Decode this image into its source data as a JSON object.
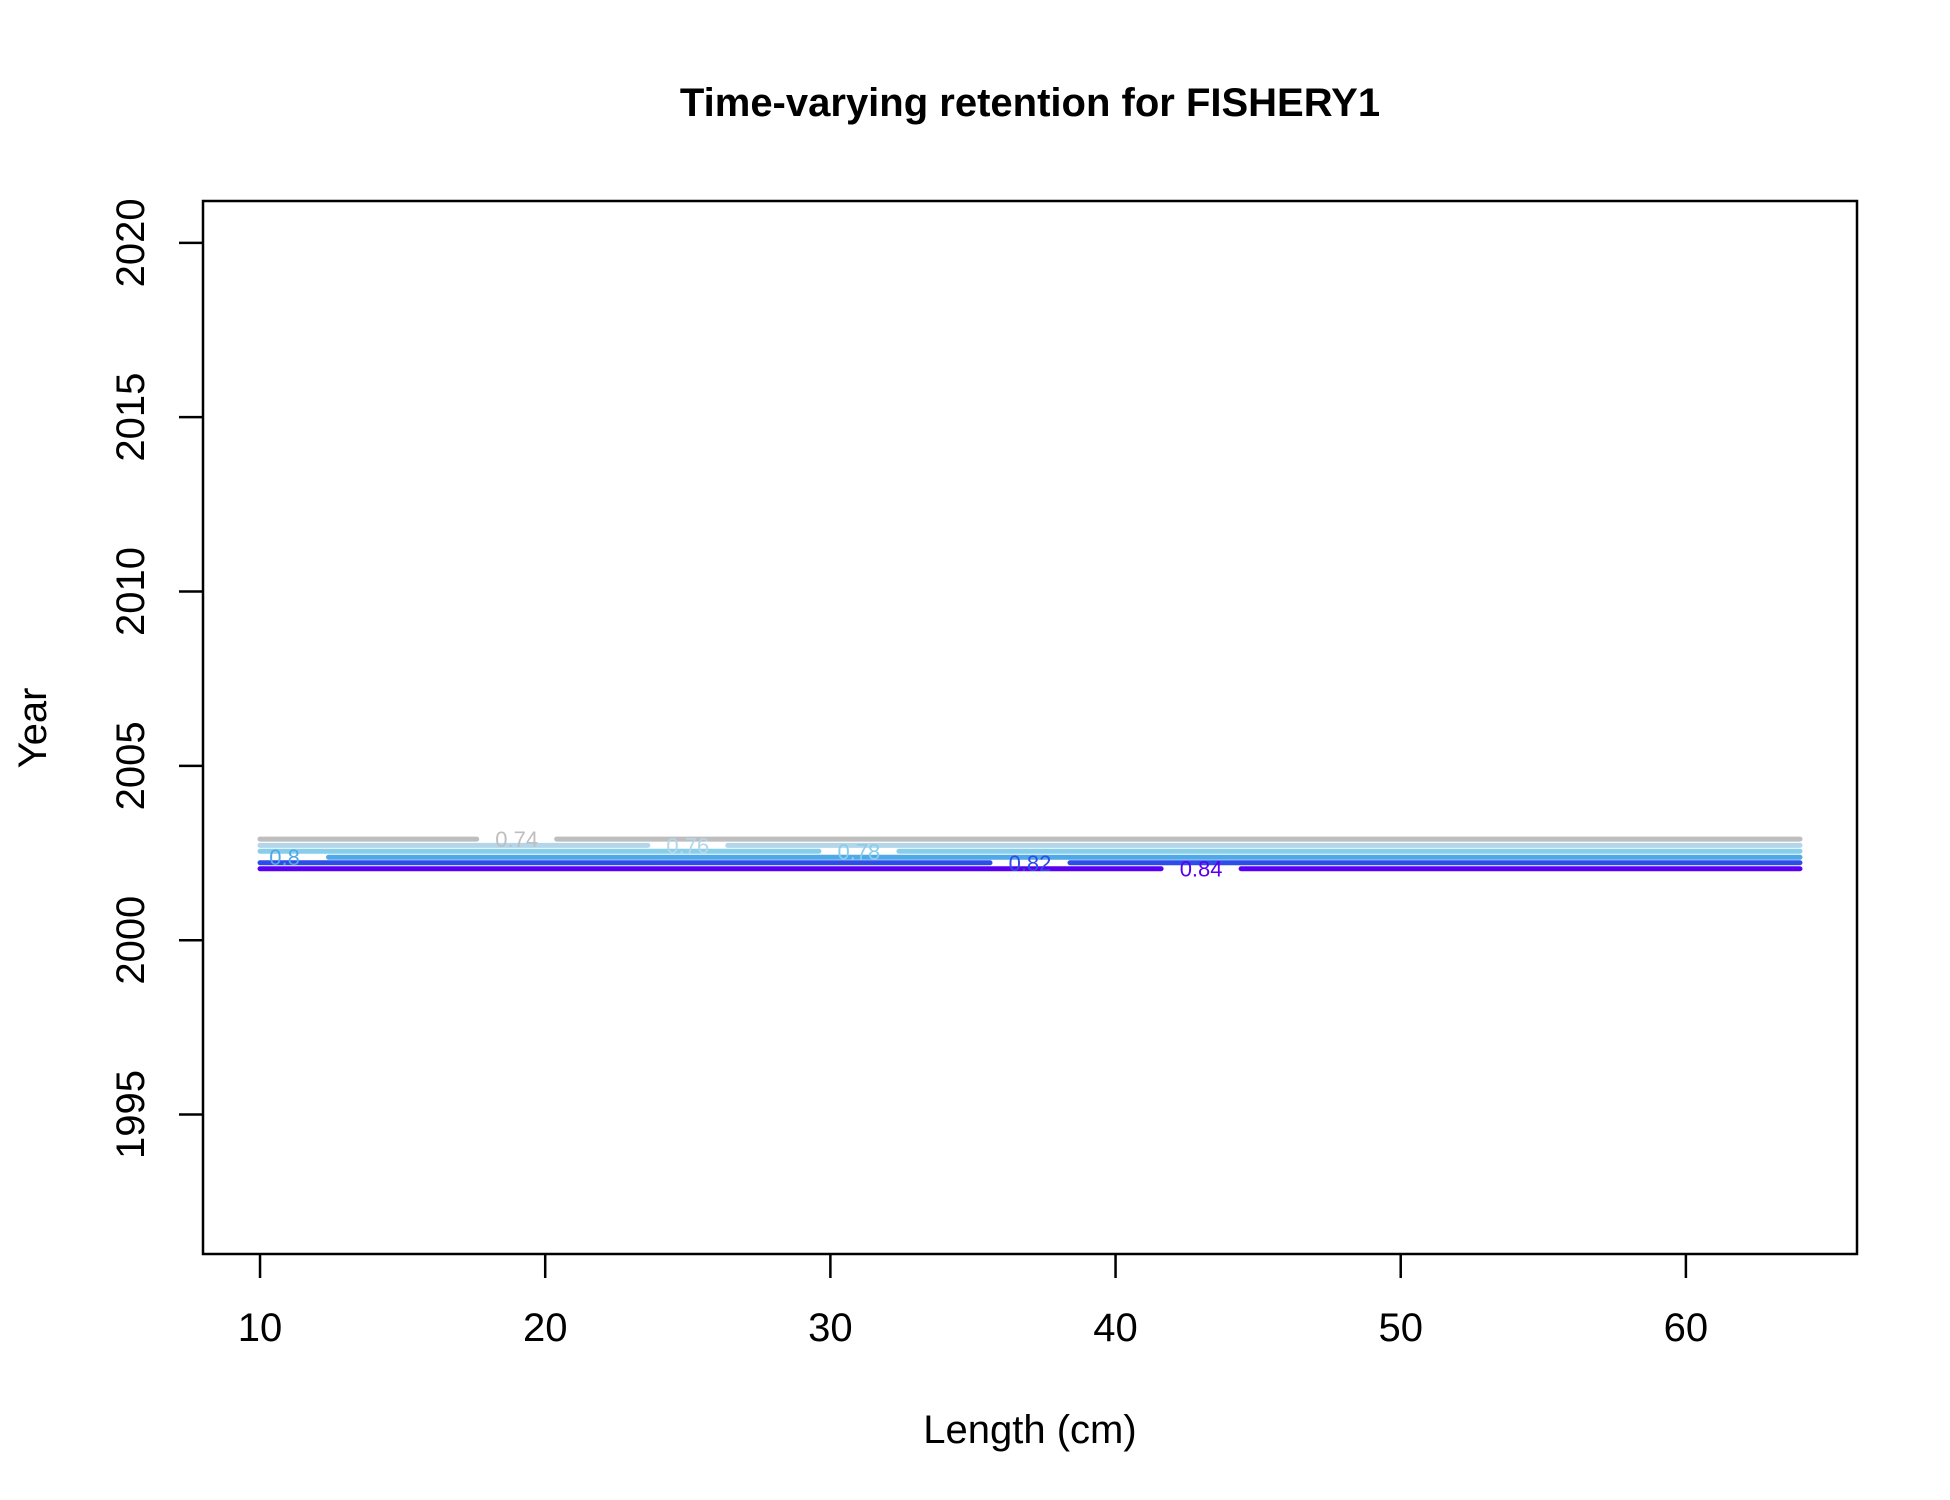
{
  "chart_data": {
    "type": "contour",
    "title": "Time-varying retention for FISHERY1",
    "xlabel": "Length (cm)",
    "ylabel": "Year",
    "xlim": [
      8,
      66
    ],
    "ylim": [
      1991,
      2021.2
    ],
    "x_ticks": [
      10,
      20,
      30,
      40,
      50,
      60
    ],
    "y_ticks": [
      1995,
      2000,
      2005,
      2010,
      2015,
      2020
    ],
    "x_range": [
      10,
      64
    ],
    "contours": [
      {
        "level": "0.74",
        "year": 2002.9,
        "color": "#bebebe",
        "label_x": 19
      },
      {
        "level": "0.76",
        "year": 2002.72,
        "color": "#b3d6ea",
        "label_x": 25
      },
      {
        "level": "0.78",
        "year": 2002.55,
        "color": "#87ceeb",
        "label_x": 31
      },
      {
        "level": "0.8",
        "year": 2002.38,
        "color": "#4fa8e8",
        "label_x": 11
      },
      {
        "level": "0.82",
        "year": 2002.22,
        "color": "#2d4de8",
        "label_x": 37
      },
      {
        "level": "0.84",
        "year": 2002.05,
        "color": "#5a00f2",
        "label_x": 43
      }
    ]
  }
}
